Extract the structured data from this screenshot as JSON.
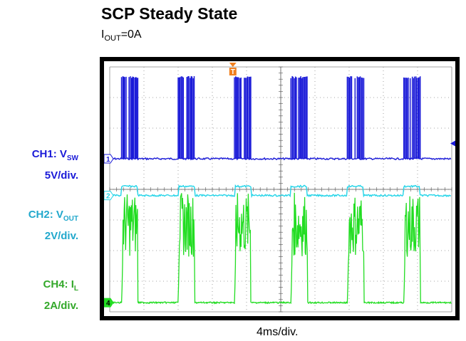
{
  "title": "SCP Steady State",
  "subtitle": {
    "main": "I",
    "sub": "OUT",
    "rest": "=0A"
  },
  "channels": [
    {
      "id": "ch1",
      "marker": "1",
      "name_main": "CH1: V",
      "name_sub": "SW",
      "scale": "5V/div.",
      "color": "#1a1ad8"
    },
    {
      "id": "ch2",
      "marker": "2",
      "name_main": "CH2: V",
      "name_sub": "OUT",
      "scale": "2V/div.",
      "color": "#22d4e8"
    },
    {
      "id": "ch4",
      "marker": "4",
      "name_main": "CH4: I",
      "name_sub": "L",
      "scale": "2A/div.",
      "color": "#22dd22"
    }
  ],
  "trigger_marker": "T",
  "x_scale": "4ms/div.",
  "chart_data": {
    "type": "line",
    "x_divisions": 10,
    "y_divisions": 8,
    "x_unit": "ms",
    "ms_per_div": 4,
    "grid": true,
    "hiccup_burst_starts_ms": [
      1.4,
      8.0,
      14.6,
      21.2,
      27.8,
      34.4
    ],
    "burst_duration_ms": 1.9,
    "hiccup_period_ms": 6.6,
    "series": [
      {
        "name": "CH1: VSW",
        "channel": "ch1",
        "baseline_div": 5.0,
        "peak_div": 7.7,
        "volts_per_div": 5
      },
      {
        "name": "CH2: VOUT",
        "channel": "ch2",
        "baseline_div": 3.8,
        "bump_div": 0.3,
        "volts_per_div": 2
      },
      {
        "name": "CH4: IL",
        "channel": "ch4",
        "baseline_div": 0.3,
        "plateau_div": 1.8,
        "ripple_top_div": 3.9,
        "amps_per_div": 2
      }
    ]
  }
}
